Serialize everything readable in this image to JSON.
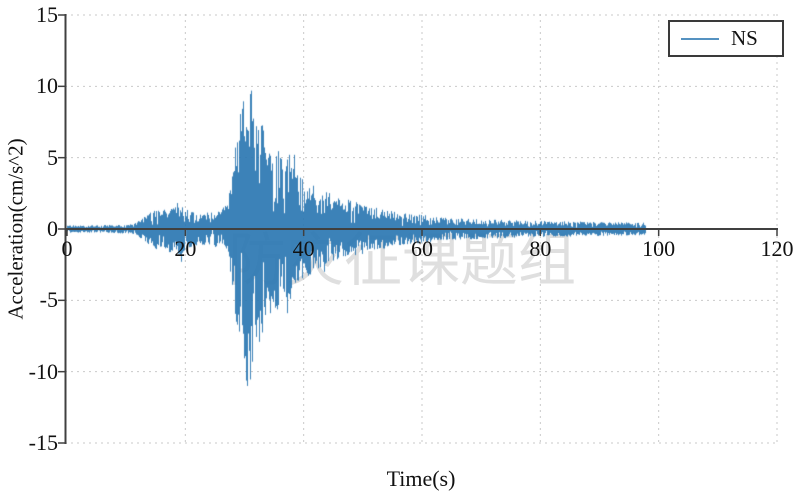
{
  "chart_data": {
    "type": "line",
    "title": "",
    "xlabel": "Time(s)",
    "ylabel": "Acceleration(cm/s^2)",
    "xlim": [
      0,
      120
    ],
    "ylim": [
      -15,
      15
    ],
    "xticks": [
      0,
      20,
      40,
      60,
      80,
      100,
      120
    ],
    "yticks": [
      15,
      10,
      5,
      0,
      -5,
      -10,
      -15
    ],
    "grid": {
      "visible": true,
      "style": "dashed",
      "color": "#c9c9c9"
    },
    "legend": {
      "position": "top-right",
      "entries": [
        {
          "label": "NS",
          "color": "#2b77b2"
        }
      ]
    },
    "watermark": "防灾征课题组",
    "colors": {
      "spine": "#404040",
      "tick_text": "#111111",
      "series": "#2b77b2"
    },
    "series": [
      {
        "name": "NS",
        "color": "#2b77b2",
        "units": "cm/s^2",
        "duration_s": 97.7,
        "peak_max": {
          "t_s": 31.05,
          "value": 9.7
        },
        "peak_min": {
          "t_s": 30.35,
          "value": -11.0
        },
        "amplitude_envelope": [
          [
            0,
            0.22
          ],
          [
            4,
            0.22
          ],
          [
            8,
            0.25
          ],
          [
            11,
            0.3
          ],
          [
            12.5,
            0.6
          ],
          [
            14,
            1.0
          ],
          [
            15,
            1.25
          ],
          [
            16,
            1.1
          ],
          [
            17,
            1.35
          ],
          [
            18,
            1.5
          ],
          [
            19,
            1.6
          ],
          [
            20,
            1.25
          ],
          [
            21,
            1.05
          ],
          [
            22,
            1.0
          ],
          [
            23,
            0.95
          ],
          [
            24,
            1.0
          ],
          [
            25,
            1.1
          ],
          [
            26,
            1.15
          ],
          [
            27,
            1.6
          ],
          [
            27.8,
            3.2
          ],
          [
            28.5,
            5.8
          ],
          [
            29.2,
            7.2
          ],
          [
            29.8,
            8.2
          ],
          [
            30.4,
            9.8
          ],
          [
            31.1,
            9.0
          ],
          [
            31.8,
            6.4
          ],
          [
            32.5,
            6.8
          ],
          [
            33.5,
            5.6
          ],
          [
            34.5,
            4.4
          ],
          [
            35.5,
            5.0
          ],
          [
            36.5,
            3.8
          ],
          [
            37.5,
            4.6
          ],
          [
            38.5,
            3.4
          ],
          [
            40,
            3.0
          ],
          [
            42,
            2.5
          ],
          [
            44,
            2.2
          ],
          [
            46,
            1.9
          ],
          [
            48,
            1.7
          ],
          [
            50,
            1.5
          ],
          [
            52,
            1.3
          ],
          [
            54,
            1.15
          ],
          [
            56,
            1.0
          ],
          [
            58,
            0.9
          ],
          [
            60,
            0.85
          ],
          [
            63,
            0.75
          ],
          [
            66,
            0.65
          ],
          [
            70,
            0.6
          ],
          [
            74,
            0.55
          ],
          [
            78,
            0.5
          ],
          [
            82,
            0.48
          ],
          [
            86,
            0.45
          ],
          [
            90,
            0.42
          ],
          [
            94,
            0.4
          ],
          [
            97.7,
            0.38
          ]
        ],
        "notable_points": [
          [
            29.7,
            8.8
          ],
          [
            30.9,
            -8.6
          ],
          [
            32.4,
            -7.9
          ],
          [
            33.1,
            6.9
          ],
          [
            28.6,
            -6.5
          ],
          [
            34.3,
            -5.9
          ],
          [
            35.3,
            5.1
          ],
          [
            37.2,
            -5.9
          ],
          [
            36.1,
            4.9
          ],
          [
            38.3,
            5.2
          ],
          [
            43.5,
            -3.0
          ],
          [
            19.2,
            -2.3
          ]
        ]
      }
    ]
  }
}
